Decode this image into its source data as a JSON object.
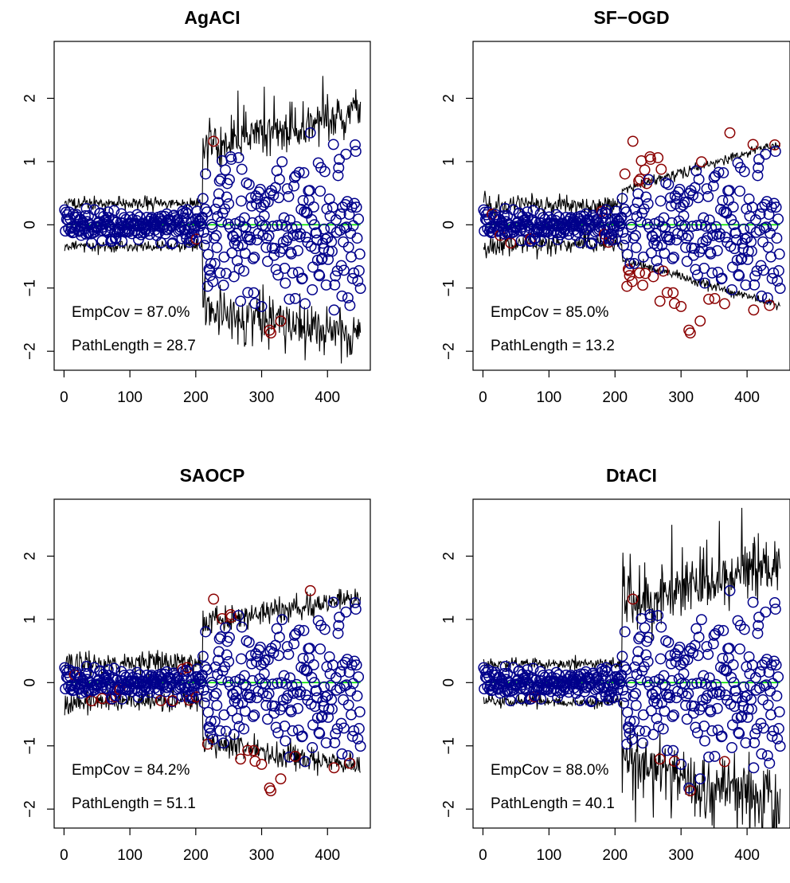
{
  "chart_data": [
    {
      "type": "scatter",
      "title": "AgACI",
      "annotations": [
        "EmpCov = 87.0%",
        "PathLength = 28.7"
      ],
      "emp_cov": "87.0%",
      "path_length": "28.7",
      "xlim": [
        -15,
        465
      ],
      "ylim": [
        -2.3,
        2.9
      ],
      "x_ticks": [
        0,
        100,
        200,
        300,
        400
      ],
      "y_ticks": [
        -2,
        -1,
        0,
        1,
        2
      ],
      "x_tick_labels": [
        "0",
        "100",
        "200",
        "300",
        "400"
      ],
      "y_tick_labels": [
        "−2",
        "−1",
        "0",
        "1",
        "2"
      ],
      "grid": false,
      "colors": {
        "inside": "#00008b",
        "outside": "#8b0000",
        "band": "#000000",
        "center": "#00dd00"
      },
      "band": {
        "pre_level": 0.34,
        "post_level": 1.25,
        "post_end": 1.75,
        "start_level": 0.35,
        "noise": 0.05,
        "post_noise": 0.18,
        "spike_prob": 0.08,
        "spike_height": 0.35,
        "seed": 11
      }
    },
    {
      "type": "scatter",
      "title": "SF−OGD",
      "annotations": [
        "EmpCov = 85.0%",
        "PathLength = 13.2"
      ],
      "emp_cov": "85.0%",
      "path_length": "13.2",
      "xlim": [
        -15,
        465
      ],
      "ylim": [
        -2.3,
        2.9
      ],
      "x_ticks": [
        0,
        100,
        200,
        300,
        400
      ],
      "y_ticks": [
        -2,
        -1,
        0,
        1,
        2
      ],
      "x_tick_labels": [
        "0",
        "100",
        "200",
        "300",
        "400"
      ],
      "y_tick_labels": [
        "−2",
        "−1",
        "0",
        "1",
        "2"
      ],
      "grid": false,
      "colors": {
        "inside": "#00008b",
        "outside": "#8b0000",
        "band": "#000000",
        "center": "#00dd00"
      },
      "band": {
        "pre_level": 0.3,
        "post_level": 0.55,
        "post_end": 1.28,
        "start_level": 0.45,
        "noise": 0.08,
        "post_noise": 0.04,
        "spike_prob": 0.0,
        "spike_height": 0.0,
        "seed": 23,
        "ramp": true
      }
    },
    {
      "type": "scatter",
      "title": "SAOCP",
      "annotations": [
        "EmpCov = 84.2%",
        "PathLength = 51.1"
      ],
      "emp_cov": "84.2%",
      "path_length": "51.1",
      "xlim": [
        -15,
        465
      ],
      "ylim": [
        -2.3,
        2.9
      ],
      "x_ticks": [
        0,
        100,
        200,
        300,
        400
      ],
      "y_ticks": [
        -2,
        -1,
        0,
        1,
        2
      ],
      "x_tick_labels": [
        "0",
        "100",
        "200",
        "300",
        "400"
      ],
      "y_tick_labels": [
        "−2",
        "−1",
        "0",
        "1",
        "2"
      ],
      "grid": false,
      "colors": {
        "inside": "#00008b",
        "outside": "#8b0000",
        "band": "#000000",
        "center": "#00dd00"
      },
      "band": {
        "pre_level": 0.3,
        "post_level": 0.95,
        "post_end": 1.35,
        "start_level": 0.35,
        "noise": 0.09,
        "post_noise": 0.1,
        "spike_prob": 0.0,
        "spike_height": 0.0,
        "seed": 37
      }
    },
    {
      "type": "scatter",
      "title": "DtACI",
      "annotations": [
        "EmpCov = 88.0%",
        "PathLength = 40.1"
      ],
      "emp_cov": "88.0%",
      "path_length": "40.1",
      "xlim": [
        -15,
        465
      ],
      "ylim": [
        -2.3,
        2.9
      ],
      "x_ticks": [
        0,
        100,
        200,
        300,
        400
      ],
      "y_ticks": [
        -2,
        -1,
        0,
        1,
        2
      ],
      "x_tick_labels": [
        "0",
        "100",
        "200",
        "300",
        "400"
      ],
      "y_tick_labels": [
        "−2",
        "−1",
        "0",
        "1",
        "2"
      ],
      "grid": false,
      "colors": {
        "inside": "#00008b",
        "outside": "#8b0000",
        "band": "#000000",
        "center": "#00dd00"
      },
      "band": {
        "pre_level": 0.3,
        "post_level": 1.2,
        "post_end": 1.85,
        "start_level": 0.3,
        "noise": 0.05,
        "post_noise": 0.22,
        "spike_prob": 0.12,
        "spike_height": 0.55,
        "seed": 53
      }
    }
  ]
}
